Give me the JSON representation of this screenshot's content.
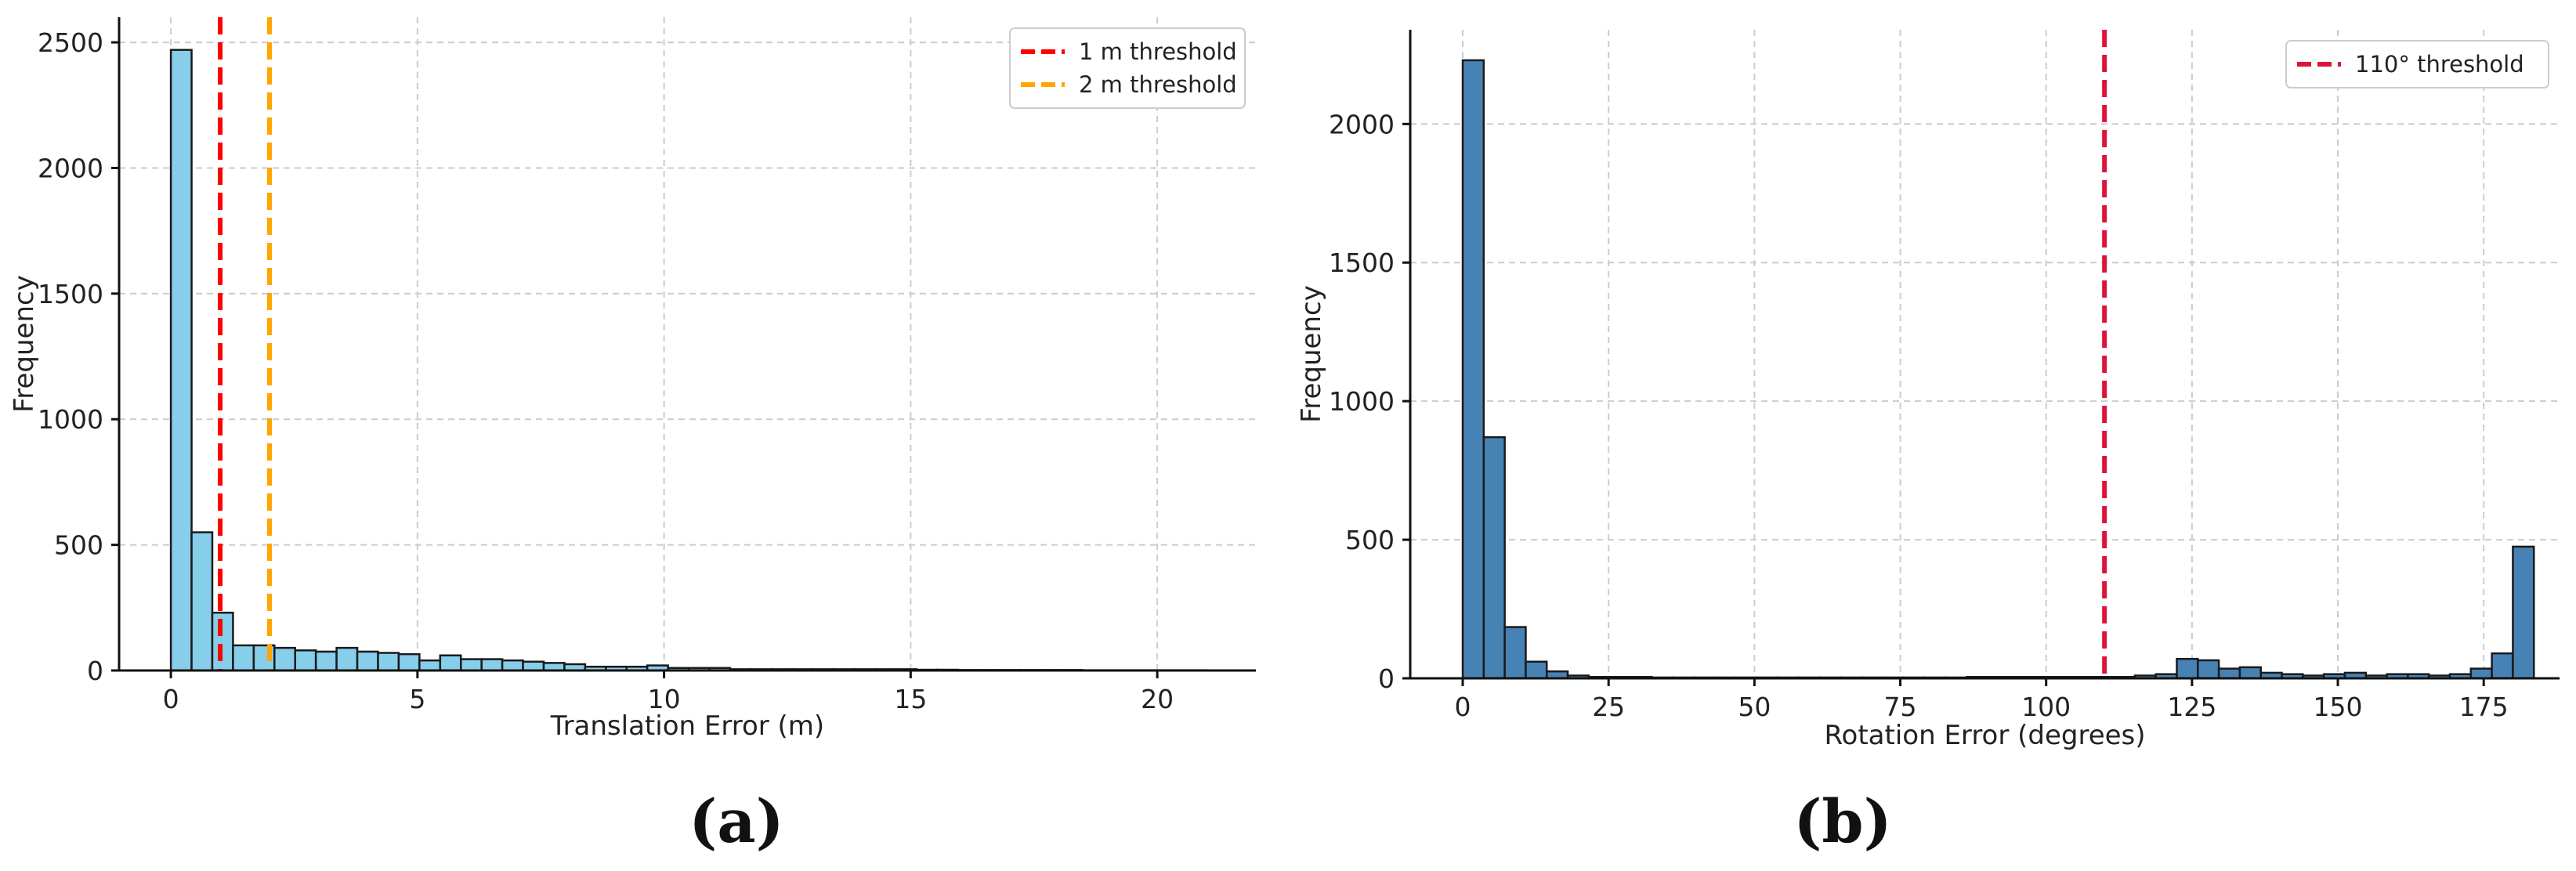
{
  "panels": [
    {
      "label": "(a)"
    },
    {
      "label": "(b)"
    }
  ],
  "chart_data": [
    {
      "type": "bar",
      "title": "",
      "xlabel": "Translation Error (m)",
      "ylabel": "Frequency",
      "xlim": [
        -1.05,
        22
      ],
      "ylim": [
        0,
        2600
      ],
      "xticks": [
        0,
        5,
        10,
        15,
        20
      ],
      "yticks": [
        0,
        500,
        1000,
        1500,
        2000,
        2500
      ],
      "grid": true,
      "bar_color": "#87CEEB",
      "legend_position": "top-right",
      "bin_width": 0.42,
      "bin_start": 0,
      "values": [
        2470,
        550,
        230,
        100,
        100,
        90,
        80,
        75,
        90,
        75,
        70,
        65,
        40,
        60,
        45,
        45,
        40,
        35,
        30,
        25,
        15,
        15,
        15,
        20,
        10,
        10,
        10,
        5,
        5,
        5,
        5,
        5,
        5,
        5,
        5,
        5,
        3,
        3,
        2,
        2,
        2,
        2,
        2,
        2,
        1,
        1,
        1,
        1,
        1,
        1
      ],
      "reference_lines": [
        {
          "x": 1,
          "label": "1 m threshold",
          "color": "#ff0000"
        },
        {
          "x": 2,
          "label": "2 m threshold",
          "color": "#ffa500"
        }
      ]
    },
    {
      "type": "bar",
      "title": "",
      "xlabel": "Rotation Error (degrees)",
      "ylabel": "Frequency",
      "xlim": [
        -9,
        188
      ],
      "ylim": [
        0,
        2340
      ],
      "xticks": [
        0,
        25,
        50,
        75,
        100,
        125,
        150,
        175
      ],
      "yticks": [
        0,
        500,
        1000,
        1500,
        2000
      ],
      "grid": true,
      "bar_color": "#4682B4",
      "legend_position": "top-right",
      "bin_width": 3.6,
      "bin_start": 0,
      "values": [
        2230,
        870,
        185,
        60,
        25,
        10,
        5,
        5,
        5,
        3,
        3,
        3,
        3,
        3,
        3,
        3,
        3,
        3,
        3,
        3,
        3,
        3,
        3,
        3,
        5,
        5,
        5,
        5,
        5,
        5,
        5,
        5,
        10,
        15,
        70,
        65,
        35,
        40,
        20,
        15,
        10,
        15,
        20,
        10,
        15,
        15,
        10,
        15,
        35,
        90,
        475
      ],
      "reference_lines": [
        {
          "x": 110,
          "label": "110° threshold",
          "color": "#dc143c"
        }
      ]
    }
  ]
}
